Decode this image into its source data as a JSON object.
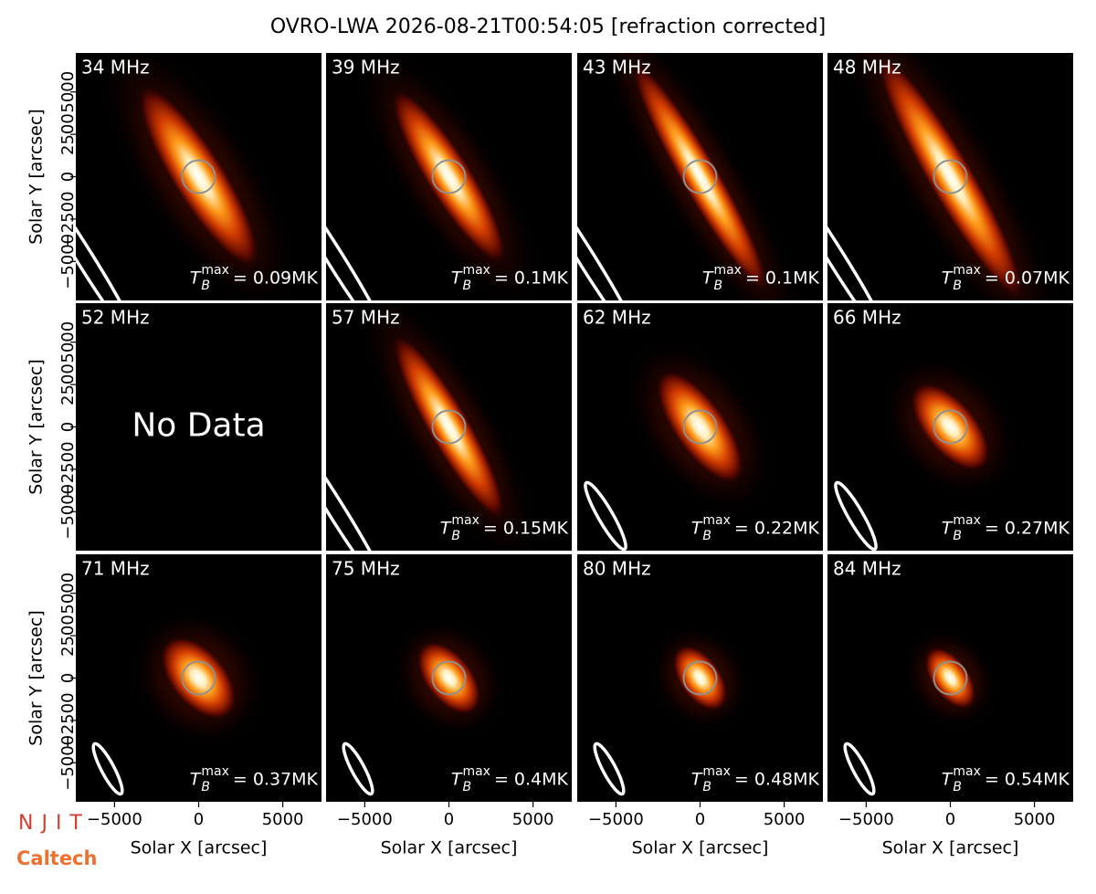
{
  "title": "OVRO-LWA 2026-08-21T00:54:05 [refraction corrected]",
  "logos": [
    "NJIT",
    "Caltech"
  ],
  "tb": {
    "base": "T",
    "sub": "B",
    "sup": "max"
  },
  "chart_data": [
    {
      "type": "image",
      "title": "34 MHz",
      "tmax": "= 0.09MK",
      "xlim": [
        -7300,
        7300
      ],
      "ylim": [
        -7300,
        7300
      ],
      "ylabel": "Solar Y [arcsec]",
      "yticks": [
        {
          "value": -5000,
          "label": "−5000"
        },
        {
          "value": -2500,
          "label": "−2500"
        },
        0,
        2500,
        5000
      ]
    },
    {
      "type": "image",
      "title": "39 MHz",
      "tmax": "= 0.1MK",
      "xlim": [
        -7300,
        7300
      ],
      "ylim": [
        -7300,
        7300
      ]
    },
    {
      "type": "image",
      "title": "43 MHz",
      "tmax": "= 0.1MK",
      "xlim": [
        -7300,
        7300
      ],
      "ylim": [
        -7300,
        7300
      ]
    },
    {
      "type": "image",
      "title": "48 MHz",
      "tmax": "= 0.07MK",
      "xlim": [
        -7300,
        7300
      ],
      "ylim": [
        -7300,
        7300
      ]
    },
    {
      "type": "image",
      "title": "52 MHz",
      "annotation": "No Data",
      "xlim": [
        -7300,
        7300
      ],
      "ylim": [
        -7300,
        7300
      ],
      "ylabel": "Solar Y [arcsec]",
      "yticks": [
        {
          "value": -5000,
          "label": "−5000"
        },
        {
          "value": -2500,
          "label": "−2500"
        },
        0,
        2500,
        5000
      ]
    },
    {
      "type": "image",
      "title": "57 MHz",
      "tmax": "= 0.15MK",
      "xlim": [
        -7300,
        7300
      ],
      "ylim": [
        -7300,
        7300
      ]
    },
    {
      "type": "image",
      "title": "62 MHz",
      "tmax": "= 0.22MK",
      "xlim": [
        -7300,
        7300
      ],
      "ylim": [
        -7300,
        7300
      ]
    },
    {
      "type": "image",
      "title": "66 MHz",
      "tmax": "= 0.27MK",
      "xlim": [
        -7300,
        7300
      ],
      "ylim": [
        -7300,
        7300
      ]
    },
    {
      "type": "image",
      "title": "71 MHz",
      "tmax": "= 0.37MK",
      "xlim": [
        -7300,
        7300
      ],
      "ylim": [
        -7300,
        7300
      ],
      "xlabel": "Solar X [arcsec]",
      "ylabel": "Solar Y [arcsec]",
      "xticks": [
        {
          "value": -5000,
          "label": "−5000"
        },
        0,
        5000
      ],
      "yticks": [
        {
          "value": -5000,
          "label": "−5000"
        },
        {
          "value": -2500,
          "label": "−2500"
        },
        0,
        2500,
        5000
      ]
    },
    {
      "type": "image",
      "title": "75 MHz",
      "tmax": "= 0.4MK",
      "xlim": [
        -7300,
        7300
      ],
      "ylim": [
        -7300,
        7300
      ],
      "xlabel": "Solar X [arcsec]",
      "xticks": [
        {
          "value": -5000,
          "label": "−5000"
        },
        0,
        5000
      ]
    },
    {
      "type": "image",
      "title": "80 MHz",
      "tmax": "= 0.48MK",
      "xlim": [
        -7300,
        7300
      ],
      "ylim": [
        -7300,
        7300
      ],
      "xlabel": "Solar X [arcsec]",
      "xticks": [
        {
          "value": -5000,
          "label": "−5000"
        },
        0,
        5000
      ]
    },
    {
      "type": "image",
      "title": "84 MHz",
      "tmax": "= 0.54MK",
      "xlim": [
        -7300,
        7300
      ],
      "ylim": [
        -7300,
        7300
      ],
      "xlabel": "Solar X [arcsec]",
      "xticks": [
        {
          "value": -5000,
          "label": "−5000"
        },
        0,
        5000
      ]
    }
  ]
}
